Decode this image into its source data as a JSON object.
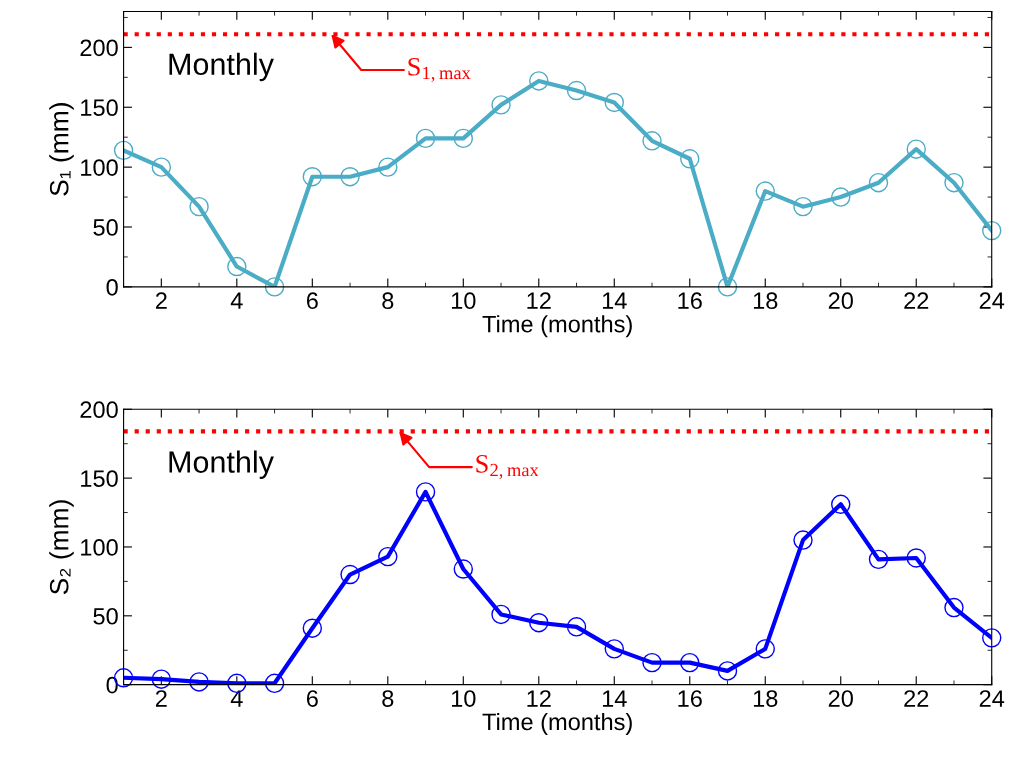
{
  "chart_data": [
    {
      "type": "line",
      "xlabel": "Time (months)",
      "ylabel": "S₁ (mm)",
      "x": [
        1,
        2,
        3,
        4,
        5,
        6,
        7,
        8,
        9,
        10,
        11,
        12,
        13,
        14,
        15,
        16,
        17,
        18,
        19,
        20,
        21,
        22,
        23,
        24
      ],
      "series": [
        {
          "color": "#4bacc6",
          "values": [
            114,
            100,
            67,
            17,
            0,
            92,
            92,
            100,
            124,
            124,
            152,
            172,
            164,
            154,
            122,
            107,
            0,
            80,
            67,
            75,
            87,
            115,
            87,
            47
          ]
        }
      ],
      "marker": "circle",
      "line_style": "solid",
      "grid": false,
      "legend": false,
      "xlim": [
        1,
        24
      ],
      "xticks": [
        2,
        4,
        6,
        8,
        10,
        12,
        14,
        16,
        18,
        20,
        22,
        24
      ],
      "ylim": [
        0,
        230
      ],
      "yticks": [
        0,
        50,
        100,
        150,
        200
      ],
      "ref_lines": [
        {
          "axis": "y",
          "value": 211,
          "color": "#ff0000",
          "line_style": "dotted"
        }
      ],
      "annotations": [
        "Monthly",
        {
          "text": "S$_{1,max}$",
          "x": 6.5,
          "y": 211
        }
      ]
    },
    {
      "type": "line",
      "xlabel": "Time (months)",
      "ylabel": "S₂ (mm)",
      "x": [
        1,
        2,
        3,
        4,
        5,
        6,
        7,
        8,
        9,
        10,
        11,
        12,
        13,
        14,
        15,
        16,
        17,
        18,
        19,
        20,
        21,
        22,
        23,
        24
      ],
      "series": [
        {
          "color": "#0000ff",
          "values": [
            5,
            4,
            2,
            1,
            1,
            41,
            80,
            93,
            140,
            84,
            51,
            45,
            42,
            26,
            16,
            16,
            10,
            26,
            105,
            131,
            91,
            92,
            56,
            34
          ]
        }
      ],
      "marker": "circle",
      "line_style": "solid",
      "grid": false,
      "legend": false,
      "xlim": [
        1,
        24
      ],
      "xticks": [
        2,
        4,
        6,
        8,
        10,
        12,
        14,
        16,
        18,
        20,
        22,
        24
      ],
      "ylim": [
        0,
        200
      ],
      "yticks": [
        0,
        50,
        100,
        150,
        200
      ],
      "ref_lines": [
        {
          "axis": "y",
          "value": 184,
          "color": "#ff0000",
          "line_style": "dotted"
        }
      ],
      "annotations": [
        "Monthly",
        {
          "text": "S$_{2,max}$",
          "x": 8.3,
          "y": 184
        }
      ]
    }
  ]
}
